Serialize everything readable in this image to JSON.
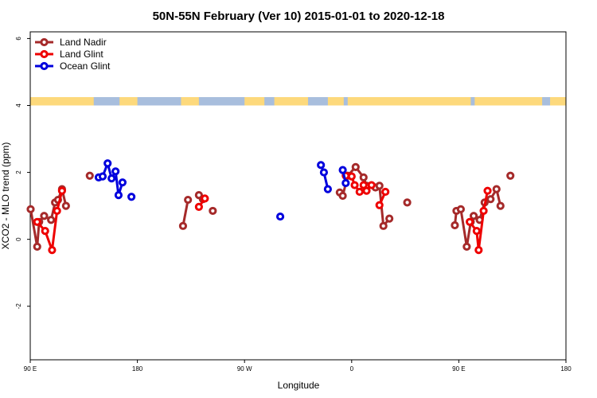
{
  "chart_data": {
    "type": "line",
    "title": "50N-55N February (Ver 10)   2015-01-01 to 2020-12-18",
    "xlabel": "Longitude",
    "ylabel": "XCO2 - MLO trend (ppm)",
    "xlim": [
      -90,
      180
    ],
    "ylim": [
      -3.6,
      6.2
    ],
    "x_ticks": [
      {
        "value": -90,
        "label": "90 E"
      },
      {
        "value": -36,
        "label": "180"
      },
      {
        "value": 18,
        "label": "90 W"
      },
      {
        "value": 72,
        "label": "0"
      },
      {
        "value": 126,
        "label": "90 E"
      },
      {
        "value": 180,
        "label": "180"
      }
    ],
    "y_ticks": [
      {
        "value": -2,
        "label": "-2"
      },
      {
        "value": 0,
        "label": "0"
      },
      {
        "value": 2,
        "label": "2"
      },
      {
        "value": 4,
        "label": "4"
      },
      {
        "value": 6,
        "label": "6"
      }
    ],
    "legend_position": "top-left",
    "land_mask_band": {
      "y_from": 4.0,
      "y_to": 4.25,
      "land_color": "#fdd97c",
      "ocean_color": "#a8bedd"
    },
    "series": [
      {
        "name": "Land Nadir",
        "color": "#a52a2a",
        "segments": [
          [
            [
              -89.8,
              0.9
            ],
            [
              -86.5,
              -0.22
            ],
            [
              -85.5,
              0.52
            ],
            [
              -83,
              0.7
            ],
            [
              -79.5,
              0.58
            ],
            [
              -77.5,
              1.1
            ],
            [
              -76,
              1.18
            ],
            [
              -74,
              1.5
            ],
            [
              -72,
              1.0
            ]
          ],
          [
            [
              -60,
              1.9
            ]
          ],
          [
            [
              -13,
              0.4
            ],
            [
              -10.5,
              1.18
            ]
          ],
          [
            [
              -5,
              1.32
            ],
            [
              -3,
              1.2
            ]
          ],
          [
            [
              2,
              0.85
            ]
          ],
          [
            [
              66,
              1.4
            ],
            [
              67.5,
              1.3
            ],
            [
              70,
              1.9
            ],
            [
              74,
              2.16
            ],
            [
              78,
              1.85
            ],
            [
              79.5,
              1.6
            ],
            [
              84,
              1.55
            ],
            [
              86,
              1.6
            ],
            [
              88,
              0.4
            ],
            [
              91,
              0.62
            ]
          ],
          [
            [
              124,
              0.42
            ],
            [
              124.8,
              0.85
            ],
            [
              127,
              0.9
            ],
            [
              130,
              -0.22
            ],
            [
              132,
              0.52
            ],
            [
              133.5,
              0.7
            ],
            [
              136.5,
              0.58
            ],
            [
              139,
              1.1
            ],
            [
              142,
              1.2
            ],
            [
              145,
              1.5
            ],
            [
              147,
              1.0
            ]
          ],
          [
            [
              152,
              1.9
            ]
          ],
          [
            [
              100,
              1.1
            ]
          ]
        ]
      },
      {
        "name": "Land Glint",
        "color": "#ee0000",
        "segments": [
          [
            [
              -86.5,
              0.52
            ],
            [
              -82.5,
              0.25
            ],
            [
              -79,
              -0.32
            ],
            [
              -76.5,
              0.85
            ],
            [
              -74,
              1.45
            ]
          ],
          [
            [
              -5,
              0.97
            ],
            [
              -2,
              1.22
            ]
          ],
          [
            [
              69,
              1.9
            ],
            [
              72,
              1.88
            ],
            [
              73.5,
              1.62
            ],
            [
              76,
              1.42
            ],
            [
              78,
              1.62
            ],
            [
              79.5,
              1.45
            ],
            [
              82,
              1.62
            ]
          ],
          [
            [
              86,
              1.02
            ],
            [
              89,
              1.42
            ]
          ],
          [
            [
              131.5,
              0.52
            ],
            [
              135,
              0.25
            ],
            [
              136,
              -0.32
            ],
            [
              138.5,
              0.85
            ],
            [
              140.5,
              1.45
            ]
          ]
        ]
      },
      {
        "name": "Ocean Glint",
        "color": "#0000dd",
        "segments": [
          [
            [
              -55.5,
              1.85
            ],
            [
              -53.5,
              1.88
            ],
            [
              -51,
              2.27
            ],
            [
              -49,
              1.82
            ],
            [
              -47,
              2.03
            ],
            [
              -45.5,
              1.32
            ],
            [
              -43.5,
              1.7
            ]
          ],
          [
            [
              -39,
              1.27
            ]
          ],
          [
            [
              36,
              0.68
            ]
          ],
          [
            [
              56.5,
              2.22
            ],
            [
              58,
              2.0
            ],
            [
              60,
              1.5
            ]
          ],
          [
            [
              67.5,
              2.07
            ],
            [
              69,
              1.68
            ]
          ]
        ]
      }
    ]
  }
}
